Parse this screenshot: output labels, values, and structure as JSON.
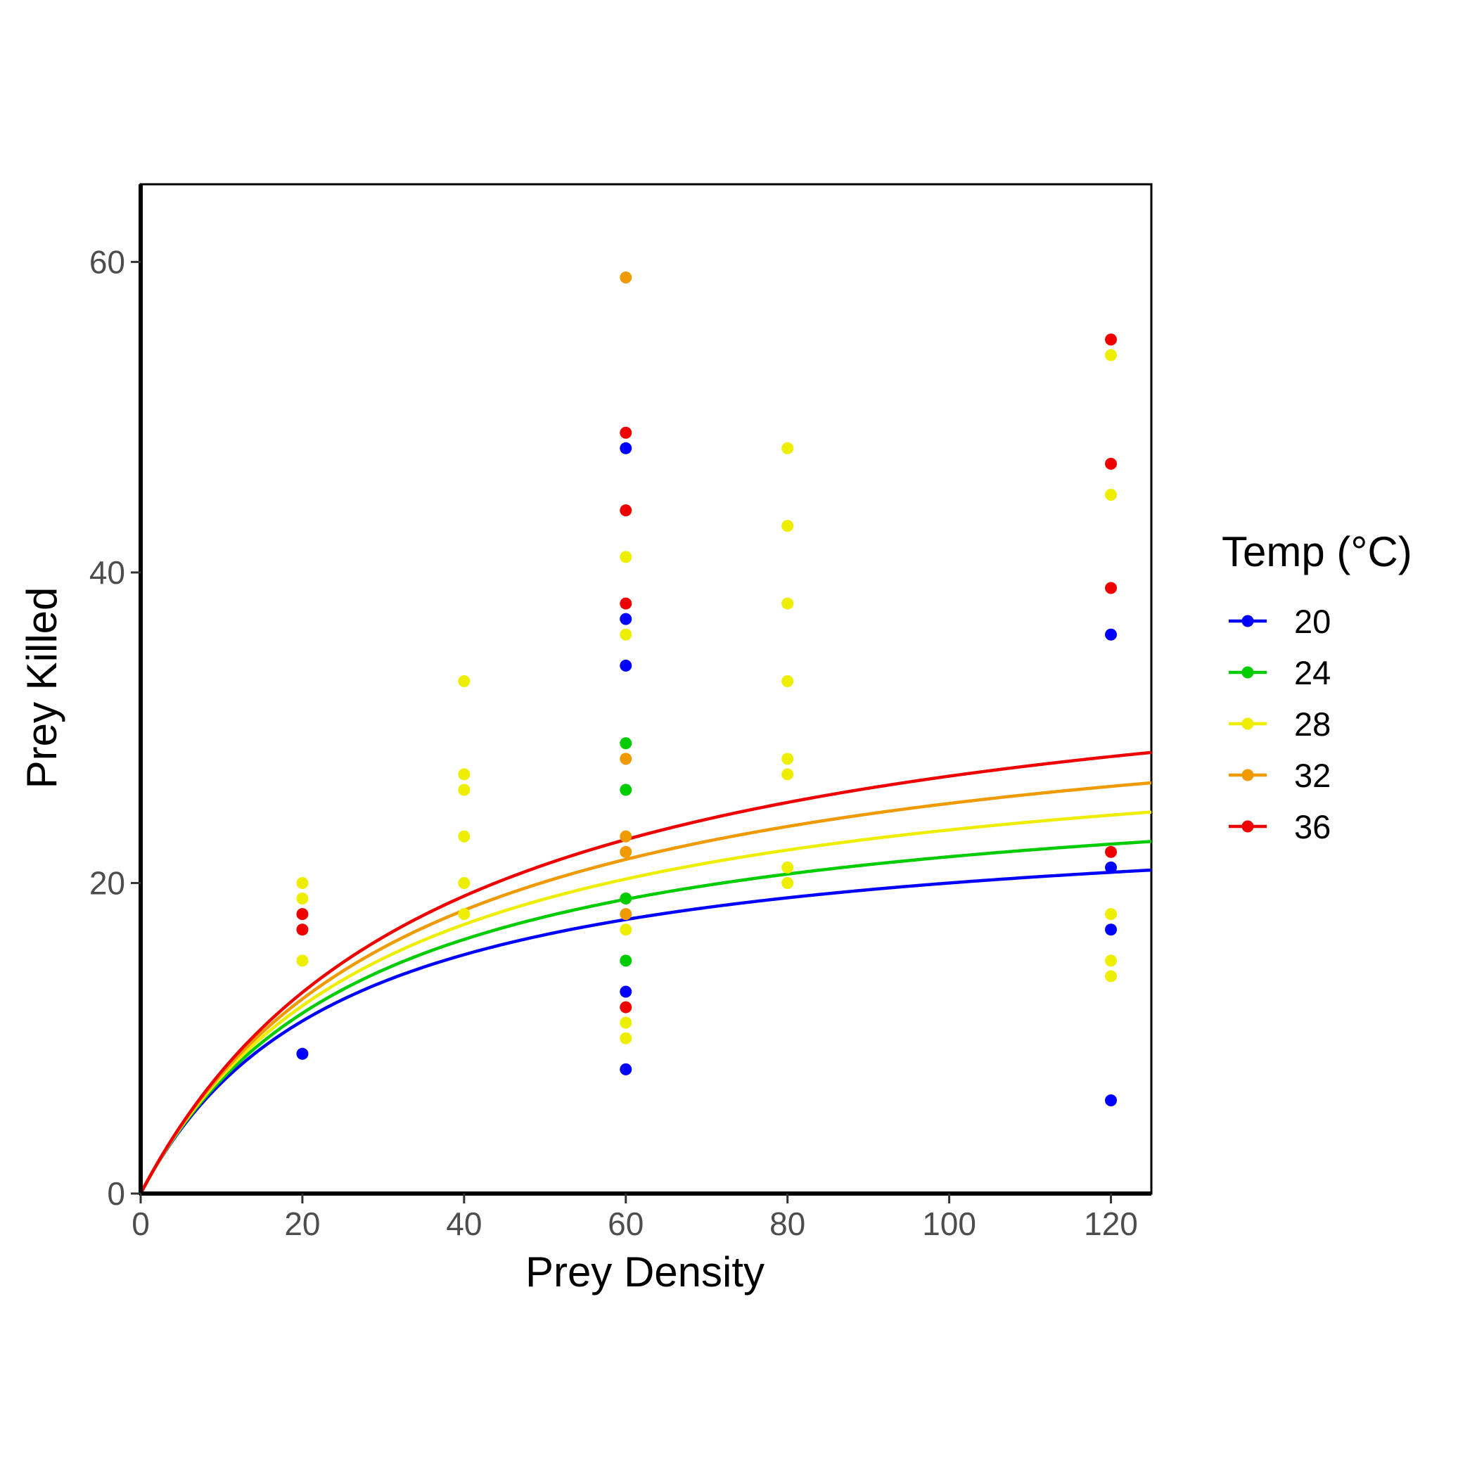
{
  "chart_data": {
    "type": "scatter",
    "xlabel": "Prey Density",
    "ylabel": "Prey Killed",
    "xlim": [
      0,
      125
    ],
    "ylim": [
      0,
      65
    ],
    "x_ticks": [
      0,
      20,
      40,
      60,
      80,
      100,
      120
    ],
    "y_ticks": [
      0,
      20,
      40,
      60
    ],
    "grid": false,
    "legend": {
      "title": "Temp (°C)",
      "position": "right",
      "entries": [
        "20",
        "24",
        "28",
        "32",
        "36"
      ]
    },
    "series": [
      {
        "name": "20",
        "color": "#0000FF",
        "points": [
          [
            20,
            9
          ],
          [
            60,
            48
          ],
          [
            60,
            37
          ],
          [
            60,
            34
          ],
          [
            60,
            13
          ],
          [
            60,
            8
          ],
          [
            120,
            36
          ],
          [
            120,
            21
          ],
          [
            120,
            17
          ],
          [
            120,
            6
          ]
        ],
        "curve": {
          "model": "type II functional response",
          "attack_rate": 1.0,
          "handling_time": 0.04
        }
      },
      {
        "name": "24",
        "color": "#00CC00",
        "points": [
          [
            60,
            29
          ],
          [
            60,
            26
          ],
          [
            60,
            19
          ],
          [
            60,
            15
          ]
        ],
        "curve": {
          "model": "type II functional response",
          "attack_rate": 1.0,
          "handling_time": 0.0361
        }
      },
      {
        "name": "28",
        "color": "#EEEE00",
        "points": [
          [
            20,
            20
          ],
          [
            20,
            19
          ],
          [
            20,
            15
          ],
          [
            40,
            33
          ],
          [
            40,
            27
          ],
          [
            40,
            26
          ],
          [
            40,
            23
          ],
          [
            40,
            20
          ],
          [
            40,
            18
          ],
          [
            60,
            41
          ],
          [
            60,
            36
          ],
          [
            60,
            17
          ],
          [
            60,
            11
          ],
          [
            60,
            10
          ],
          [
            80,
            48
          ],
          [
            80,
            43
          ],
          [
            80,
            38
          ],
          [
            80,
            33
          ],
          [
            80,
            28
          ],
          [
            80,
            27
          ],
          [
            80,
            21
          ],
          [
            80,
            20
          ],
          [
            120,
            54
          ],
          [
            120,
            45
          ],
          [
            120,
            18
          ],
          [
            120,
            15
          ],
          [
            120,
            14
          ]
        ],
        "curve": {
          "model": "type II functional response",
          "attack_rate": 1.0,
          "handling_time": 0.0327
        }
      },
      {
        "name": "32",
        "color": "#EE9A00",
        "points": [
          [
            60,
            59
          ],
          [
            60,
            28
          ],
          [
            60,
            23
          ],
          [
            60,
            22
          ],
          [
            60,
            18
          ]
        ],
        "curve": {
          "model": "type II functional response",
          "attack_rate": 1.0,
          "handling_time": 0.0298
        }
      },
      {
        "name": "36",
        "color": "#EE0000",
        "points": [
          [
            20,
            18
          ],
          [
            20,
            17
          ],
          [
            60,
            49
          ],
          [
            60,
            44
          ],
          [
            60,
            38
          ],
          [
            60,
            12
          ],
          [
            120,
            55
          ],
          [
            120,
            47
          ],
          [
            120,
            39
          ],
          [
            120,
            22
          ]
        ],
        "curve": {
          "model": "type II functional response",
          "attack_rate": 1.0,
          "handling_time": 0.0272
        }
      }
    ]
  }
}
